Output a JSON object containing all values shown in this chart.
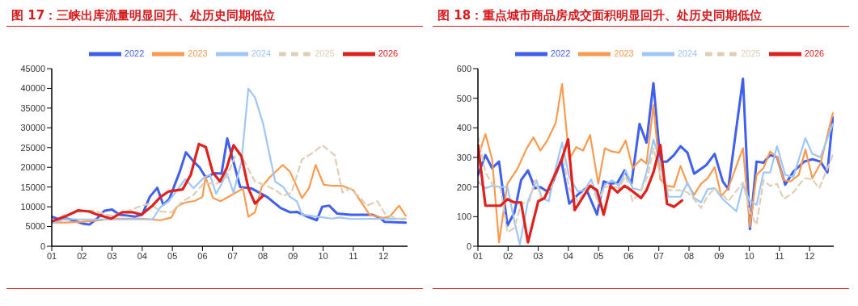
{
  "chart_data": [
    {
      "type": "line",
      "title": "图 17：三峡出库流量明显回升、处历史同期低位",
      "legend": "top",
      "marker": "none",
      "grid": false,
      "xlim": [
        1,
        12.8
      ],
      "xticks": [
        {
          "value": 1,
          "label": "01"
        },
        {
          "value": 2,
          "label": "02"
        },
        {
          "value": 3,
          "label": "03"
        },
        {
          "value": 4,
          "label": "04"
        },
        {
          "value": 5,
          "label": "05"
        },
        {
          "value": 6,
          "label": "06"
        },
        {
          "value": 7,
          "label": "07"
        },
        {
          "value": 8,
          "label": "08"
        },
        {
          "value": 9,
          "label": "09"
        },
        {
          "value": 10,
          "label": "10"
        },
        {
          "value": 11,
          "label": "11"
        },
        {
          "value": 12,
          "label": "12"
        }
      ],
      "ylim": [
        0,
        45000
      ],
      "yticks": [
        0,
        5000,
        10000,
        15000,
        20000,
        25000,
        30000,
        35000,
        40000,
        45000
      ],
      "series": [
        {
          "name": "2022",
          "color": "#3f5ff0",
          "line_style": "solid",
          "x": [
            1,
            1.25,
            1.5,
            1.75,
            2,
            2.25,
            2.5,
            2.75,
            3,
            3.25,
            3.5,
            3.75,
            4,
            4.25,
            4.5,
            4.7,
            4.9,
            5.25,
            5.45,
            5.7,
            5.9,
            6.1,
            6.4,
            6.63,
            6.82,
            7.25,
            7.61,
            8.14,
            8.59,
            8.9,
            9.13,
            9.48,
            9.79,
            9.97,
            10.2,
            10.46,
            10.91,
            11.63,
            11.89,
            12.03,
            12.74
          ],
          "values": [
            7500,
            6800,
            7000,
            6500,
            5800,
            5500,
            7000,
            9000,
            9300,
            8000,
            7800,
            7500,
            8000,
            12500,
            14800,
            10500,
            12000,
            19000,
            23800,
            21500,
            20000,
            17500,
            18500,
            18400,
            27300,
            15000,
            14700,
            12500,
            9700,
            8600,
            8700,
            7500,
            6600,
            10000,
            10300,
            8300,
            8000,
            8000,
            7200,
            6200,
            6000
          ]
        },
        {
          "name": "2023",
          "color": "#fa9a4f",
          "line_style": "solid",
          "x": [
            1,
            1.5,
            2,
            2.5,
            3,
            3.5,
            4,
            4.3,
            4.6,
            4.97,
            5.15,
            5.38,
            5.75,
            6.0,
            6.1,
            6.35,
            6.6,
            7.25,
            7.34,
            7.52,
            7.74,
            7.96,
            8.23,
            8.66,
            8.9,
            9.3,
            9.53,
            9.75,
            10.02,
            10.29,
            10.64,
            11.0,
            11.54,
            11.98,
            12.21,
            12.52,
            12.74
          ],
          "values": [
            6000,
            6000,
            6200,
            6500,
            7000,
            7000,
            7000,
            6800,
            6600,
            7300,
            10000,
            11000,
            11500,
            12500,
            17500,
            12200,
            11400,
            14200,
            14700,
            7500,
            8600,
            15000,
            17500,
            20600,
            18900,
            12200,
            14700,
            20600,
            15600,
            15300,
            15300,
            14200,
            8000,
            7200,
            7500,
            10300,
            7700
          ]
        },
        {
          "name": "2024",
          "color": "#9fc6f5",
          "line_style": "solid",
          "x": [
            1,
            1.43,
            2,
            3,
            4,
            4.34,
            4.61,
            4.88,
            5.43,
            5.7,
            6.06,
            6.25,
            6.45,
            6.63,
            6.8,
            7.03,
            7.29,
            7.52,
            7.74,
            8.01,
            8.41,
            8.68,
            8.9,
            9.13,
            9.3,
            10.02,
            10.29,
            10.55,
            10.91,
            12.74
          ],
          "values": [
            5800,
            6900,
            6800,
            6800,
            6800,
            6800,
            10000,
            11400,
            17000,
            14700,
            17500,
            18100,
            13300,
            15800,
            18600,
            13600,
            21400,
            39900,
            37700,
            31000,
            16400,
            15000,
            12500,
            11400,
            8000,
            7300,
            7000,
            7300,
            6900,
            7000
          ]
        },
        {
          "name": "2025",
          "color": "#dccfb6",
          "line_style": "dashed",
          "x": [
            1,
            1.43,
            1.88,
            2.34,
            2.97,
            3.43,
            3.88,
            4.25,
            4.61,
            4.97,
            5.34,
            5.7,
            6.06,
            6.45,
            6.8,
            7.07,
            7.25,
            7.47,
            7.74,
            8.14,
            8.41,
            8.68,
            8.95,
            9.3,
            9.66,
            9.97,
            10.38,
            10.64,
            10.91,
            11.27,
            11.45,
            11.8,
            12.07,
            12.52,
            12.74
          ],
          "values": [
            6000,
            8000,
            8600,
            9100,
            7700,
            8600,
            10000,
            10800,
            8800,
            8600,
            11400,
            13000,
            16100,
            15800,
            17500,
            22600,
            23700,
            20300,
            16400,
            15300,
            14200,
            12800,
            13600,
            22000,
            23700,
            25600,
            23100,
            13600,
            14700,
            11900,
            10300,
            11400,
            8000,
            6900,
            6600
          ]
        },
        {
          "name": "2026",
          "color": "#e0201c",
          "line_style": "solid",
          "x": [
            1,
            1.43,
            1.88,
            2.25,
            2.52,
            2.97,
            3.34,
            3.7,
            3.97,
            4.34,
            4.61,
            4.88,
            5.34,
            5.61,
            5.88,
            6.11,
            6.34,
            6.58,
            6.8,
            7.03,
            7.29,
            7.52,
            7.74,
            8.01
          ],
          "values": [
            6300,
            7500,
            9100,
            8800,
            8000,
            7000,
            8600,
            8600,
            8000,
            10300,
            12500,
            13900,
            14400,
            18100,
            25900,
            25100,
            18700,
            16400,
            19800,
            25600,
            22800,
            14700,
            10800,
            12800
          ]
        }
      ]
    },
    {
      "type": "line",
      "title": "图 18：重点城市商品房成交面积明显回升、处历史同期低位",
      "legend": "top",
      "marker": "none",
      "grid": false,
      "xlim": [
        1,
        12.8
      ],
      "xticks": [
        {
          "value": 1,
          "label": "01"
        },
        {
          "value": 2,
          "label": "02"
        },
        {
          "value": 3,
          "label": "03"
        },
        {
          "value": 4,
          "label": "04"
        },
        {
          "value": 5,
          "label": "05"
        },
        {
          "value": 6,
          "label": "06"
        },
        {
          "value": 7,
          "label": "07"
        },
        {
          "value": 8,
          "label": "08"
        },
        {
          "value": 9,
          "label": "09"
        },
        {
          "value": 10,
          "label": "10"
        },
        {
          "value": 11,
          "label": "11"
        },
        {
          "value": 12,
          "label": "12"
        }
      ],
      "ylim": [
        0,
        600
      ],
      "yticks": [
        0,
        100,
        200,
        300,
        400,
        500,
        600
      ],
      "series": [
        {
          "name": "2022",
          "color": "#3f5ff0",
          "line_style": "solid",
          "x": [
            1,
            1.25,
            1.47,
            1.7,
            1.98,
            2.21,
            2.43,
            2.66,
            2.89,
            3.07,
            3.35,
            3.58,
            3.76,
            4.03,
            4.31,
            4.58,
            4.95,
            5.17,
            5.4,
            5.63,
            5.86,
            6.09,
            6.36,
            6.59,
            6.82,
            7.05,
            7.27,
            7.5,
            7.72,
            7.95,
            8.17,
            8.58,
            8.85,
            9.12,
            9.3,
            9.79,
            10.02,
            10.24,
            10.47,
            10.69,
            10.92,
            11.19,
            11.46,
            11.82,
            12.09,
            12.36,
            12.59,
            12.77
          ],
          "values": [
            240,
            308,
            264,
            286,
            70,
            114,
            223,
            256,
            196,
            200,
            182,
            241,
            294,
            144,
            174,
            196,
            107,
            219,
            211,
            215,
            256,
            211,
            413,
            350,
            551,
            286,
            286,
            308,
            338,
            316,
            245,
            275,
            312,
            219,
            193,
            566,
            58,
            286,
            282,
            308,
            301,
            208,
            252,
            286,
            294,
            286,
            249,
            435
          ]
        },
        {
          "name": "2023",
          "color": "#fa9a4f",
          "line_style": "solid",
          "x": [
            1,
            1.25,
            1.47,
            1.7,
            1.98,
            2.3,
            2.62,
            2.84,
            3.07,
            3.3,
            3.58,
            3.79,
            4.03,
            4.26,
            4.49,
            4.72,
            4.99,
            5.21,
            5.45,
            5.68,
            5.9,
            6.13,
            6.41,
            6.59,
            6.82,
            7.05,
            7.27,
            7.5,
            7.72,
            7.95,
            8.17,
            8.4,
            8.62,
            8.85,
            9.07,
            9.3,
            9.79,
            10.02,
            10.24,
            10.47,
            10.69,
            10.92,
            11.14,
            11.37,
            11.64,
            11.86,
            12.09,
            12.36,
            12.77
          ],
          "values": [
            301,
            379,
            294,
            13,
            211,
            260,
            331,
            368,
            323,
            357,
            417,
            548,
            294,
            335,
            323,
            376,
            211,
            331,
            320,
            316,
            357,
            264,
            294,
            279,
            477,
            226,
            204,
            200,
            271,
            211,
            174,
            211,
            230,
            267,
            170,
            196,
            331,
            66,
            241,
            264,
            320,
            301,
            223,
            219,
            241,
            327,
            230,
            279,
            450
          ]
        },
        {
          "name": "2024",
          "color": "#9fc6f5",
          "line_style": "solid",
          "x": [
            1,
            1.25,
            1.47,
            1.75,
            1.98,
            2.21,
            2.39,
            2.66,
            2.94,
            3.12,
            3.35,
            3.58,
            3.79,
            4.03,
            4.31,
            4.53,
            4.76,
            4.99,
            5.21,
            5.45,
            5.68,
            5.9,
            6.13,
            6.41,
            6.59,
            6.82,
            7.05,
            7.32,
            7.72,
            7.95,
            8.17,
            8.4,
            8.62,
            8.85,
            9.12,
            9.57,
            9.79,
            10.02,
            10.24,
            10.47,
            10.69,
            10.92,
            11.19,
            11.46,
            11.86,
            12.09,
            12.36,
            12.77
          ],
          "values": [
            219,
            196,
            204,
            200,
            200,
            84,
            6,
            152,
            223,
            163,
            152,
            264,
            350,
            234,
            185,
            189,
            226,
            152,
            208,
            223,
            204,
            256,
            196,
            189,
            249,
            361,
            279,
            167,
            167,
            215,
            163,
            148,
            193,
            196,
            159,
            118,
            208,
            152,
            140,
            249,
            249,
            338,
            241,
            234,
            365,
            312,
            301,
            413
          ]
        },
        {
          "name": "2025",
          "color": "#dccfb6",
          "line_style": "dashed",
          "x": [
            1,
            1.25,
            1.47,
            1.75,
            1.98,
            2.21,
            2.43,
            2.71,
            2.89,
            3.12,
            3.35,
            3.58,
            3.8,
            4.03,
            4.31,
            4.53,
            4.76,
            4.99,
            5.21,
            5.45,
            5.68,
            5.9,
            6.13,
            6.41,
            6.64,
            6.82,
            7.05,
            7.32,
            7.72,
            7.95,
            8.17,
            8.4,
            8.62,
            8.85,
            9.12,
            9.3,
            9.79,
            10.02,
            10.24,
            10.47,
            10.69,
            10.92,
            11.14,
            11.46,
            11.82,
            12.09,
            12.32,
            12.77
          ],
          "values": [
            372,
            249,
            211,
            196,
            47,
            62,
            144,
            152,
            223,
            159,
            182,
            241,
            308,
            196,
            152,
            182,
            211,
            144,
            200,
            204,
            196,
            238,
            152,
            189,
            241,
            331,
            241,
            189,
            189,
            182,
            159,
            129,
            170,
            196,
            174,
            152,
            215,
            114,
            73,
            223,
            204,
            211,
            159,
            182,
            230,
            226,
            196,
            308
          ]
        },
        {
          "name": "2026",
          "color": "#e0201c",
          "line_style": "solid",
          "x": [
            1,
            1.25,
            1.47,
            1.75,
            1.98,
            2.21,
            2.43,
            2.66,
            3.0,
            3.21,
            3.48,
            3.76,
            3.99,
            4.21,
            4.49,
            4.72,
            4.95,
            5.17,
            5.4,
            5.63,
            5.86,
            6.09,
            6.41,
            6.59,
            6.82,
            7.05,
            7.27,
            7.5,
            7.77
          ],
          "values": [
            342,
            137,
            137,
            137,
            159,
            148,
            148,
            13,
            152,
            163,
            226,
            286,
            361,
            122,
            167,
            204,
            189,
            107,
            204,
            182,
            204,
            189,
            163,
            189,
            249,
            342,
            144,
            133,
            155
          ]
        }
      ]
    }
  ]
}
